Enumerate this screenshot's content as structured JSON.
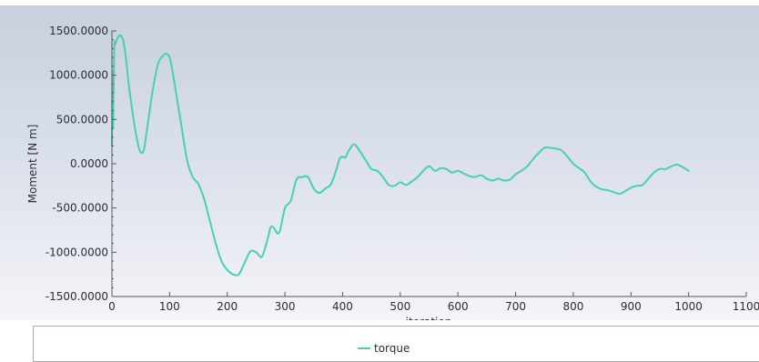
{
  "chart_data": {
    "type": "line",
    "title": "",
    "xlabel": "iteration",
    "ylabel": "Moment [N m]",
    "xlim": [
      0,
      1100
    ],
    "ylim": [
      -1500,
      1500
    ],
    "x_ticks": [
      0,
      100,
      200,
      300,
      400,
      500,
      600,
      700,
      800,
      900,
      1000,
      1100
    ],
    "y_ticks": [
      1500,
      1000,
      500,
      0,
      -500,
      -1000,
      -1500
    ],
    "x_tick_labels": [
      "0",
      "100",
      "200",
      "300",
      "400",
      "500",
      "600",
      "700",
      "800",
      "900",
      "1000",
      "1100"
    ],
    "y_tick_labels": [
      "1500.0000",
      "1000.0000",
      "500.0000",
      "0.0000",
      "-500.0000",
      "-1000.0000",
      "-1500.0000"
    ],
    "grid": false,
    "legend_position": "bottom",
    "series": [
      {
        "name": "torque",
        "color": "#48d0b4",
        "x": [
          0,
          1,
          2,
          4,
          6,
          10,
          15,
          20,
          25,
          30,
          40,
          48,
          55,
          60,
          70,
          80,
          90,
          95,
          100,
          105,
          110,
          120,
          130,
          140,
          150,
          160,
          170,
          180,
          190,
          200,
          210,
          220,
          230,
          240,
          250,
          260,
          270,
          275,
          280,
          290,
          300,
          310,
          320,
          330,
          340,
          350,
          360,
          370,
          380,
          390,
          395,
          400,
          405,
          410,
          420,
          430,
          440,
          450,
          460,
          470,
          480,
          490,
          500,
          510,
          520,
          530,
          540,
          550,
          560,
          570,
          580,
          590,
          600,
          610,
          620,
          630,
          640,
          650,
          660,
          670,
          680,
          690,
          700,
          710,
          720,
          730,
          740,
          750,
          760,
          770,
          780,
          790,
          800,
          810,
          820,
          830,
          840,
          850,
          860,
          870,
          880,
          890,
          900,
          910,
          920,
          930,
          940,
          950,
          960,
          970,
          980,
          990,
          1000
        ],
        "y": [
          200,
          1050,
          400,
          1300,
          1350,
          1420,
          1450,
          1380,
          1150,
          850,
          400,
          150,
          150,
          350,
          800,
          1130,
          1230,
          1240,
          1200,
          1050,
          850,
          450,
          50,
          -150,
          -230,
          -400,
          -650,
          -900,
          -1100,
          -1200,
          -1250,
          -1250,
          -1120,
          -990,
          -1000,
          -1050,
          -850,
          -720,
          -720,
          -780,
          -500,
          -420,
          -180,
          -150,
          -150,
          -280,
          -330,
          -280,
          -230,
          -50,
          60,
          80,
          70,
          140,
          220,
          140,
          40,
          -60,
          -80,
          -150,
          -240,
          -250,
          -210,
          -240,
          -200,
          -150,
          -80,
          -30,
          -80,
          -50,
          -60,
          -100,
          -80,
          -110,
          -140,
          -150,
          -130,
          -170,
          -190,
          -170,
          -190,
          -180,
          -120,
          -80,
          -30,
          50,
          120,
          180,
          180,
          170,
          150,
          80,
          0,
          -50,
          -100,
          -200,
          -260,
          -290,
          -300,
          -320,
          -340,
          -310,
          -270,
          -250,
          -240,
          -170,
          -100,
          -60,
          -60,
          -30,
          -10,
          -40,
          -80
        ]
      }
    ]
  }
}
